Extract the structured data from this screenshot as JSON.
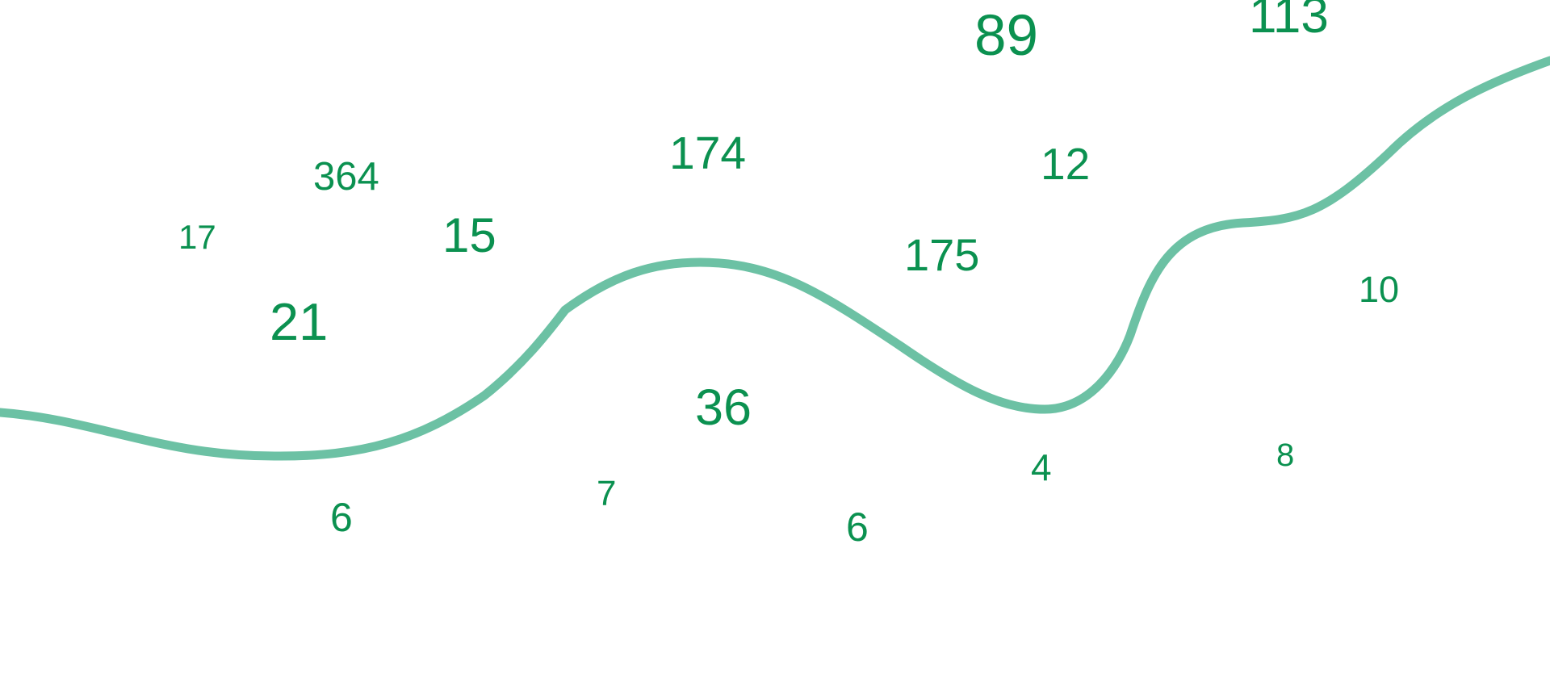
{
  "colors": {
    "numbers": "#0b9150",
    "curve": "#6cc1a4",
    "background": "#ffffff"
  },
  "numbers": [
    "89",
    "113",
    "364",
    "174",
    "12",
    "17",
    "15",
    "175",
    "21",
    "10",
    "36",
    "4",
    "7",
    "6",
    "6",
    "8"
  ]
}
